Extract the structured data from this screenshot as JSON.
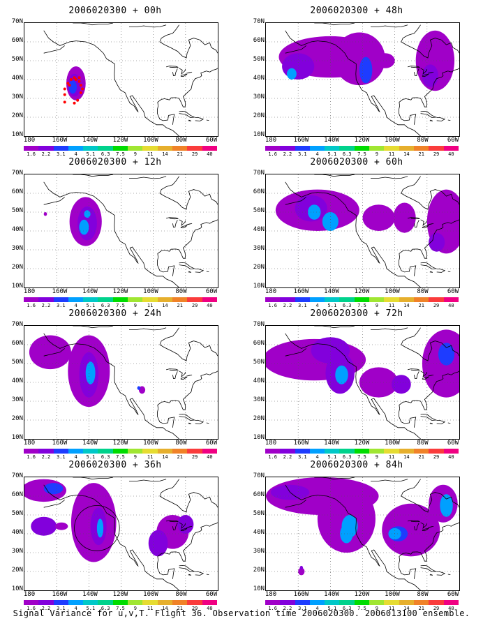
{
  "caption": "Signal Variance for u,v,T. Flight 36. Observation time 2006020300. 2006013100 ensemble.",
  "y_axis_labels": [
    "70N",
    "60N",
    "50N",
    "40N",
    "30N",
    "20N",
    "10N"
  ],
  "x_axis_labels": [
    "180",
    "160W",
    "140W",
    "120W",
    "100W",
    "80W",
    "60W"
  ],
  "colorbar": {
    "labels": [
      "1.6",
      "2.2",
      "3.1",
      "4",
      "5.1",
      "6.3",
      "7.5",
      "9",
      "11",
      "14",
      "21",
      "29",
      "40"
    ],
    "colors": [
      "#a000c8",
      "#8200dc",
      "#1e3cff",
      "#00a0ff",
      "#00c8c8",
      "#00d28c",
      "#00dc00",
      "#a0e632",
      "#e6dc32",
      "#e6af2d",
      "#f08228",
      "#fa3c3c",
      "#f00082"
    ]
  },
  "panels": [
    {
      "title": "2006020300 + 00h"
    },
    {
      "title": "2006020300 + 48h"
    },
    {
      "title": "2006020300 + 12h"
    },
    {
      "title": "2006020300 + 60h"
    },
    {
      "title": "2006020300 + 24h"
    },
    {
      "title": "2006020300 + 72h"
    },
    {
      "title": "2006020300 + 36h"
    },
    {
      "title": "2006020300 + 84h"
    }
  ],
  "map_style": {
    "projection": "lat-lon",
    "lon_range": [
      "180",
      "60W"
    ],
    "lat_range": [
      "10N",
      "70N"
    ],
    "grid": "dotted",
    "coastline_color": "#000000",
    "flight_track_color": "#ff0000"
  }
}
